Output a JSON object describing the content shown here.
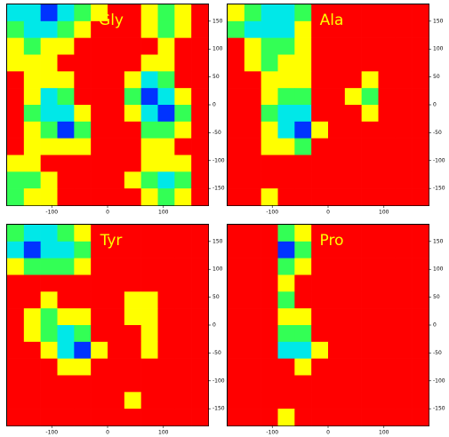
{
  "chart_data": [
    {
      "type": "heatmap",
      "title": "Gly",
      "title_color": "#ffff00",
      "colors": [
        "#ff0000",
        "#ffff00",
        "#33ff55",
        "#00e8e8",
        "#0033ff"
      ],
      "xlim": [
        -180,
        180
      ],
      "ylim": [
        -180,
        180
      ],
      "xticks": [
        -100,
        0,
        100
      ],
      "yticks": [
        -150,
        -100,
        -50,
        0,
        50,
        100,
        150
      ],
      "values": [
        [
          3,
          3,
          4,
          3,
          2,
          1,
          0,
          0,
          1,
          2,
          1,
          0
        ],
        [
          2,
          3,
          3,
          2,
          1,
          0,
          0,
          0,
          1,
          2,
          1,
          0
        ],
        [
          1,
          2,
          1,
          1,
          0,
          0,
          0,
          0,
          0,
          1,
          0,
          0
        ],
        [
          1,
          1,
          1,
          0,
          0,
          0,
          0,
          0,
          1,
          1,
          0,
          0
        ],
        [
          0,
          1,
          1,
          1,
          0,
          0,
          0,
          1,
          3,
          2,
          0,
          0
        ],
        [
          0,
          1,
          3,
          2,
          0,
          0,
          0,
          2,
          4,
          3,
          1,
          0
        ],
        [
          0,
          2,
          3,
          3,
          1,
          0,
          0,
          1,
          3,
          4,
          2,
          0
        ],
        [
          0,
          1,
          2,
          4,
          2,
          0,
          0,
          0,
          2,
          2,
          1,
          0
        ],
        [
          0,
          1,
          1,
          1,
          1,
          0,
          0,
          0,
          1,
          1,
          0,
          0
        ],
        [
          1,
          1,
          0,
          0,
          0,
          0,
          0,
          0,
          1,
          1,
          1,
          0
        ],
        [
          2,
          2,
          1,
          0,
          0,
          0,
          0,
          1,
          2,
          3,
          2,
          0
        ],
        [
          2,
          1,
          1,
          0,
          0,
          0,
          0,
          0,
          1,
          2,
          1,
          0
        ]
      ]
    },
    {
      "type": "heatmap",
      "title": "Ala",
      "title_color": "#ffff00",
      "colors": [
        "#ff0000",
        "#ffff00",
        "#33ff55",
        "#00e8e8",
        "#0033ff"
      ],
      "xlim": [
        -180,
        180
      ],
      "ylim": [
        -180,
        180
      ],
      "xticks": [
        -100,
        0,
        100
      ],
      "yticks": [
        -150,
        -100,
        -50,
        0,
        50,
        100,
        150
      ],
      "values": [
        [
          1,
          2,
          3,
          3,
          2,
          0,
          0,
          0,
          0,
          0,
          0,
          0
        ],
        [
          2,
          3,
          3,
          3,
          1,
          0,
          0,
          0,
          0,
          0,
          0,
          0
        ],
        [
          0,
          1,
          2,
          2,
          1,
          0,
          0,
          0,
          0,
          0,
          0,
          0
        ],
        [
          0,
          1,
          2,
          1,
          1,
          0,
          0,
          0,
          0,
          0,
          0,
          0
        ],
        [
          0,
          0,
          1,
          1,
          1,
          0,
          0,
          0,
          1,
          0,
          0,
          0
        ],
        [
          0,
          0,
          1,
          2,
          2,
          0,
          0,
          1,
          2,
          0,
          0,
          0
        ],
        [
          0,
          0,
          2,
          3,
          3,
          0,
          0,
          0,
          1,
          0,
          0,
          0
        ],
        [
          0,
          0,
          1,
          3,
          4,
          1,
          0,
          0,
          0,
          0,
          0,
          0
        ],
        [
          0,
          0,
          1,
          1,
          2,
          0,
          0,
          0,
          0,
          0,
          0,
          0
        ],
        [
          0,
          0,
          0,
          0,
          0,
          0,
          0,
          0,
          0,
          0,
          0,
          0
        ],
        [
          0,
          0,
          0,
          0,
          0,
          0,
          0,
          0,
          0,
          0,
          0,
          0
        ],
        [
          0,
          0,
          1,
          0,
          0,
          0,
          0,
          0,
          0,
          0,
          0,
          0
        ]
      ]
    },
    {
      "type": "heatmap",
      "title": "Tyr",
      "title_color": "#ffff00",
      "colors": [
        "#ff0000",
        "#ffff00",
        "#33ff55",
        "#00e8e8",
        "#0033ff"
      ],
      "xlim": [
        -180,
        180
      ],
      "ylim": [
        -180,
        180
      ],
      "xticks": [
        -100,
        0,
        100
      ],
      "yticks": [
        -150,
        -100,
        -50,
        0,
        50,
        100,
        150
      ],
      "values": [
        [
          2,
          3,
          3,
          2,
          1,
          0,
          0,
          0,
          0,
          0,
          0,
          0
        ],
        [
          3,
          4,
          3,
          3,
          2,
          0,
          0,
          0,
          0,
          0,
          0,
          0
        ],
        [
          1,
          2,
          2,
          2,
          1,
          0,
          0,
          0,
          0,
          0,
          0,
          0
        ],
        [
          0,
          0,
          0,
          0,
          0,
          0,
          0,
          0,
          0,
          0,
          0,
          0
        ],
        [
          0,
          0,
          1,
          0,
          0,
          0,
          0,
          1,
          1,
          0,
          0,
          0
        ],
        [
          0,
          1,
          2,
          1,
          1,
          0,
          0,
          1,
          1,
          0,
          0,
          0
        ],
        [
          0,
          1,
          2,
          3,
          2,
          0,
          0,
          0,
          1,
          0,
          0,
          0
        ],
        [
          0,
          0,
          1,
          3,
          4,
          1,
          0,
          0,
          1,
          0,
          0,
          0
        ],
        [
          0,
          0,
          0,
          1,
          1,
          0,
          0,
          0,
          0,
          0,
          0,
          0
        ],
        [
          0,
          0,
          0,
          0,
          0,
          0,
          0,
          0,
          0,
          0,
          0,
          0
        ],
        [
          0,
          0,
          0,
          0,
          0,
          0,
          0,
          1,
          0,
          0,
          0,
          0
        ],
        [
          0,
          0,
          0,
          0,
          0,
          0,
          0,
          0,
          0,
          0,
          0,
          0
        ]
      ]
    },
    {
      "type": "heatmap",
      "title": "Pro",
      "title_color": "#ffff00",
      "colors": [
        "#ff0000",
        "#ffff00",
        "#33ff55",
        "#00e8e8",
        "#0033ff"
      ],
      "xlim": [
        -180,
        180
      ],
      "ylim": [
        -180,
        180
      ],
      "xticks": [
        -100,
        0,
        100
      ],
      "yticks": [
        -150,
        -100,
        -50,
        0,
        50,
        100,
        150
      ],
      "values": [
        [
          0,
          0,
          0,
          2,
          1,
          0,
          0,
          0,
          0,
          0,
          0,
          0
        ],
        [
          0,
          0,
          0,
          4,
          2,
          0,
          0,
          0,
          0,
          0,
          0,
          0
        ],
        [
          0,
          0,
          0,
          2,
          1,
          0,
          0,
          0,
          0,
          0,
          0,
          0
        ],
        [
          0,
          0,
          0,
          1,
          0,
          0,
          0,
          0,
          0,
          0,
          0,
          0
        ],
        [
          0,
          0,
          0,
          2,
          0,
          0,
          0,
          0,
          0,
          0,
          0,
          0
        ],
        [
          0,
          0,
          0,
          1,
          1,
          0,
          0,
          0,
          0,
          0,
          0,
          0
        ],
        [
          0,
          0,
          0,
          2,
          2,
          0,
          0,
          0,
          0,
          0,
          0,
          0
        ],
        [
          0,
          0,
          0,
          3,
          3,
          1,
          0,
          0,
          0,
          0,
          0,
          0
        ],
        [
          0,
          0,
          0,
          0,
          1,
          0,
          0,
          0,
          0,
          0,
          0,
          0
        ],
        [
          0,
          0,
          0,
          0,
          0,
          0,
          0,
          0,
          0,
          0,
          0,
          0
        ],
        [
          0,
          0,
          0,
          0,
          0,
          0,
          0,
          0,
          0,
          0,
          0,
          0
        ],
        [
          0,
          0,
          0,
          1,
          0,
          0,
          0,
          0,
          0,
          0,
          0,
          0
        ]
      ]
    }
  ]
}
